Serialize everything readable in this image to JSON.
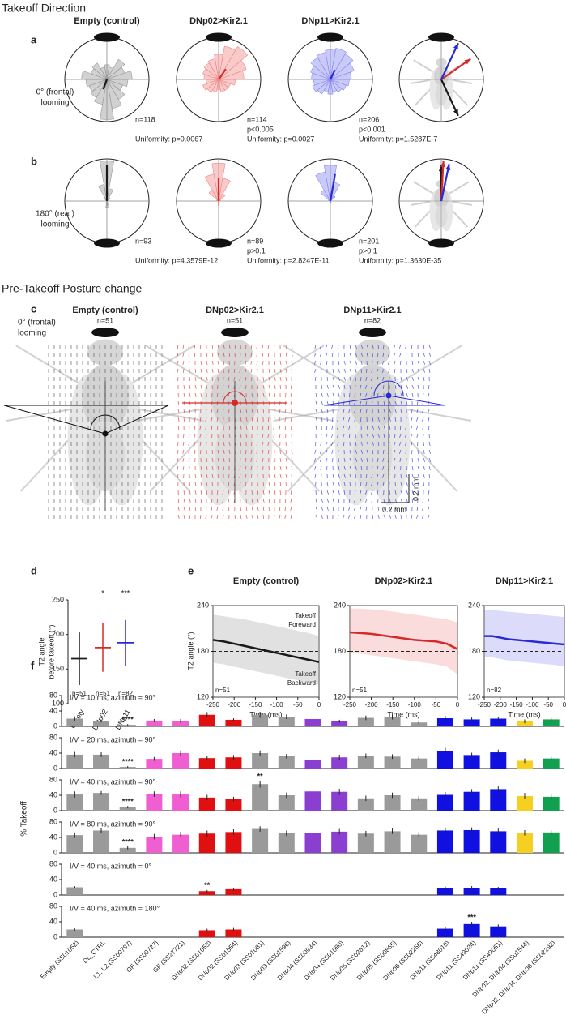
{
  "takeoff_direction": {
    "title": "Takeoff Direction",
    "rlim": [
      0,
      1
    ],
    "genotypes": [
      {
        "name": "Empty (control)",
        "title_color": "#8c8c8c",
        "fill": "#9a9a9a",
        "line": "#1a1a1a"
      },
      {
        "name": "DNp02>Kir2.1",
        "title_color": "#d42a2a",
        "fill": "#f08a8a",
        "line": "#d42a2a"
      },
      {
        "name": "DNp11>Kir2.1",
        "title_color": "#2a2ad4",
        "fill": "#8a8af0",
        "line": "#2a2ad4"
      }
    ],
    "rows": [
      {
        "label": "a",
        "stimulus": [
          "0° (frontal)",
          "looming"
        ],
        "stimulus_side": "front",
        "plots": [
          {
            "rose": [
              0.35,
              0.3,
              0.55,
              0.45,
              0.6,
              0.5,
              0.4,
              0.55,
              0.7,
              0.95,
              0.6,
              0.5,
              0.45,
              0.5,
              0.6,
              0.4,
              0.45,
              0.3
            ],
            "mean_angle": 200,
            "mean_length": 0.25,
            "stats": [
              "n=118",
              "Uniformity: p=0.0067"
            ]
          },
          {
            "rose": [
              0.6,
              0.8,
              0.9,
              0.7,
              0.6,
              0.4,
              0.3,
              0.3,
              0.3,
              0.25,
              0.3,
              0.35,
              0.4,
              0.3,
              0.35,
              0.4,
              0.45,
              0.5
            ],
            "mean_angle": 35,
            "mean_length": 0.3,
            "stats": [
              "n=114",
              "p<0.005",
              "Uniformity: p=0.0027"
            ]
          },
          {
            "rose": [
              0.7,
              0.75,
              0.7,
              0.6,
              0.5,
              0.45,
              0.4,
              0.35,
              0.3,
              0.35,
              0.3,
              0.4,
              0.45,
              0.4,
              0.45,
              0.5,
              0.6,
              0.65
            ],
            "mean_angle": 25,
            "mean_length": 0.25,
            "stats": [
              "n=206",
              "p<0.001",
              "Uniformity: p=1.5287E-7"
            ]
          }
        ],
        "summary": [
          {
            "angle": 155,
            "length": 0.95
          },
          {
            "angle": 55,
            "length": 0.85
          },
          {
            "angle": 25,
            "length": 0.95
          }
        ]
      },
      {
        "label": "b",
        "stimulus": [
          "180° (rear)",
          "looming"
        ],
        "stimulus_side": "rear",
        "plots": [
          {
            "rose": [
              0.95,
              0.3,
              0.1,
              0,
              0,
              0,
              0,
              0,
              0.1,
              0.15,
              0.05,
              0,
              0,
              0,
              0,
              0,
              0.1,
              0.4
            ],
            "mean_angle": 0,
            "mean_length": 0.85,
            "stats": [
              "n=93",
              "Uniformity: p=4.3579E-12"
            ]
          },
          {
            "rose": [
              0.9,
              0.55,
              0.2,
              0.05,
              0,
              0,
              0,
              0,
              0.05,
              0.1,
              0.05,
              0,
              0,
              0,
              0,
              0.05,
              0.3,
              0.65
            ],
            "mean_angle": 0,
            "mean_length": 0.55,
            "stats": [
              "n=89",
              "p>0.1",
              "Uniformity: p=2.8247E-11"
            ]
          },
          {
            "rose": [
              0.85,
              0.45,
              0.15,
              0,
              0,
              0,
              0,
              0,
              0.05,
              0.05,
              0,
              0,
              0,
              0,
              0,
              0.05,
              0.3,
              0.7
            ],
            "mean_angle": 10,
            "mean_length": 0.65,
            "stats": [
              "n=201",
              "p>0.1",
              "Uniformity: p=1.3630E-35"
            ]
          }
        ],
        "summary": [
          {
            "angle": 0,
            "length": 0.85
          },
          {
            "angle": 3,
            "length": 0.95
          },
          {
            "angle": 12,
            "length": 0.9
          }
        ]
      }
    ]
  },
  "posture": {
    "title": "Pre-Takeoff Posture change",
    "c": {
      "label": "c",
      "stimulus": [
        "0° (frontal)",
        "looming"
      ],
      "n_labels": [
        "n=51",
        "n=51",
        "n=82"
      ],
      "scale_y": "0.2 mm",
      "scale_x": "0.2 mm"
    },
    "d": {
      "label": "d",
      "ylabel": [
        "T2 angle",
        "before takeoff (°)"
      ],
      "categories": [
        "Empty",
        "DNp02",
        "DNp11"
      ],
      "means": [
        165,
        181,
        188
      ],
      "sd": [
        38,
        35,
        33
      ],
      "n_labels": [
        "n=51",
        "n=51",
        "n=82"
      ],
      "significance": [
        null,
        "*",
        "***"
      ],
      "ylim": [
        100,
        250
      ],
      "yticks": [
        100,
        150,
        200,
        250
      ]
    },
    "e": {
      "label": "e",
      "ylabel": "T2 angle (°)",
      "xlabel": "Time (ms)",
      "x": [
        -250,
        -225,
        -200,
        -175,
        -150,
        -125,
        -100,
        -75,
        -50,
        -25,
        0
      ],
      "xlim": [
        -250,
        0
      ],
      "xticks": [
        -250,
        -200,
        -150,
        -100,
        -50,
        0
      ],
      "ylim": [
        120,
        240
      ],
      "yticks": [
        120,
        180,
        240
      ],
      "reference_line": 180,
      "annotation_top": [
        "Takeoff",
        "Foreward"
      ],
      "annotation_bottom": [
        "Takeoff",
        "Backward"
      ],
      "series": [
        {
          "values": [
            195,
            193,
            190,
            187,
            184,
            181,
            178,
            175,
            172,
            169,
            166
          ],
          "lower": [
            165,
            163,
            160,
            157,
            154,
            151,
            148,
            145,
            142,
            139,
            136
          ],
          "upper": [
            228,
            226,
            224,
            222,
            219,
            216,
            213,
            210,
            207,
            204,
            200
          ],
          "n": "n=51"
        },
        {
          "values": [
            205,
            204,
            203,
            201,
            199,
            197,
            195,
            194,
            193,
            190,
            183
          ],
          "lower": [
            178,
            177,
            175,
            173,
            171,
            169,
            167,
            165,
            163,
            160,
            150
          ],
          "upper": [
            236,
            236,
            235,
            234,
            232,
            230,
            228,
            226,
            224,
            222,
            218
          ],
          "n": "n=51"
        },
        {
          "values": [
            200,
            200,
            198,
            196,
            195,
            194,
            193,
            192,
            191,
            190,
            189
          ],
          "lower": [
            172,
            172,
            170,
            168,
            167,
            166,
            165,
            164,
            163,
            162,
            160
          ],
          "upper": [
            234,
            234,
            233,
            232,
            231,
            230,
            229,
            228,
            227,
            226,
            225
          ],
          "n": "n=82"
        }
      ]
    }
  },
  "f": {
    "label": "f",
    "ylabel": "% Takeoff",
    "ylim": [
      0,
      80
    ],
    "yticks": [
      0,
      40,
      80
    ],
    "categories": [
      "Empty (SS01062)",
      "DL_CTRL",
      "L1, L2 (SS00797)",
      "GF (SS00727)",
      "GF (SS27721)",
      "DNp02 (SS01053)",
      "DNp02 (SS01554)",
      "DNp03 (SS01081)",
      "DNp03 (SS01596)",
      "DNp04 (SS00934)",
      "DNp04 (SS01080)",
      "DNp05 (SS02612)",
      "DNp05 (SS00865)",
      "DNp06 (SS02256)",
      "DNp11 (SS48010)",
      "DNp11 (SS49024)",
      "DNp11 (SS49051)",
      "DNp02, DNp04 (SS01544)",
      "DNp02, DNp04, DNp06 (SS02292)"
    ],
    "colors": [
      "#9a9a9a",
      "#9a9a9a",
      "#9a9a9a",
      "#f05fd2",
      "#f05fd2",
      "#e01010",
      "#e01010",
      "#9a9a9a",
      "#9a9a9a",
      "#8a3fd0",
      "#8a3fd0",
      "#9a9a9a",
      "#9a9a9a",
      "#9a9a9a",
      "#1010e0",
      "#1010e0",
      "#1010e0",
      "#f5d020",
      "#10a050"
    ],
    "rows": [
      {
        "title": "I/V = 10 ms, azimuth = 90°",
        "values": [
          20,
          14,
          4,
          15,
          14,
          30,
          17,
          30,
          25,
          19,
          13,
          22,
          24,
          10,
          21,
          18,
          20,
          13,
          18
        ],
        "errors": [
          6,
          4,
          2,
          4,
          5,
          7,
          4,
          8,
          6,
          5,
          4,
          6,
          6,
          4,
          6,
          5,
          5,
          5,
          4
        ],
        "significance": [
          null,
          null,
          "****",
          null,
          null,
          null,
          null,
          null,
          null,
          null,
          null,
          null,
          null,
          null,
          null,
          null,
          null,
          null,
          null
        ]
      },
      {
        "title": "I/V = 20 ms, azimuth = 90°",
        "values": [
          36,
          36,
          4,
          25,
          40,
          27,
          29,
          40,
          32,
          22,
          29,
          33,
          31,
          26,
          46,
          35,
          42,
          20,
          26
        ],
        "errors": [
          7,
          6,
          2,
          5,
          7,
          6,
          6,
          7,
          6,
          5,
          7,
          6,
          6,
          5,
          8,
          6,
          7,
          6,
          5
        ],
        "significance": [
          null,
          null,
          "****",
          null,
          null,
          null,
          null,
          null,
          null,
          null,
          null,
          null,
          null,
          null,
          null,
          null,
          null,
          null,
          null
        ]
      },
      {
        "title": "I/V = 40 ms, azimuth = 90°",
        "values": [
          42,
          46,
          9,
          43,
          42,
          34,
          30,
          69,
          40,
          50,
          49,
          32,
          40,
          32,
          41,
          49,
          56,
          38,
          36
        ],
        "errors": [
          8,
          5,
          3,
          7,
          8,
          7,
          6,
          9,
          7,
          7,
          8,
          7,
          7,
          6,
          7,
          7,
          7,
          8,
          6
        ],
        "significance": [
          null,
          null,
          "****",
          null,
          null,
          null,
          null,
          "**",
          null,
          null,
          null,
          null,
          null,
          null,
          null,
          null,
          null,
          null,
          null
        ]
      },
      {
        "title": "I/V = 80 ms, azimuth = 90°",
        "values": [
          46,
          58,
          13,
          42,
          47,
          50,
          54,
          62,
          51,
          51,
          55,
          50,
          56,
          47,
          58,
          59,
          56,
          52,
          53
        ],
        "errors": [
          7,
          6,
          4,
          7,
          7,
          8,
          7,
          7,
          7,
          7,
          7,
          7,
          7,
          6,
          7,
          7,
          7,
          7,
          6
        ],
        "significance": [
          null,
          null,
          "****",
          null,
          null,
          null,
          null,
          null,
          null,
          null,
          null,
          null,
          null,
          null,
          null,
          null,
          null,
          null,
          null
        ]
      },
      {
        "title": "I/V = 40 ms, azimuth = 0°",
        "values": [
          20,
          null,
          null,
          null,
          null,
          10,
          15,
          null,
          null,
          null,
          null,
          null,
          null,
          null,
          17,
          18,
          17,
          null,
          null
        ],
        "errors": [
          3,
          null,
          null,
          null,
          null,
          3,
          4,
          null,
          null,
          null,
          null,
          null,
          null,
          null,
          5,
          5,
          4,
          null,
          null
        ],
        "significance": [
          null,
          null,
          null,
          null,
          null,
          "**",
          null,
          null,
          null,
          null,
          null,
          null,
          null,
          null,
          null,
          null,
          null,
          null,
          null
        ]
      },
      {
        "title": "I/V = 40 ms, azimuth = 180°",
        "values": [
          20,
          null,
          null,
          null,
          null,
          18,
          20,
          null,
          null,
          null,
          null,
          null,
          null,
          null,
          22,
          34,
          28,
          null,
          null
        ],
        "errors": [
          3,
          null,
          null,
          null,
          null,
          4,
          4,
          null,
          null,
          null,
          null,
          null,
          null,
          null,
          5,
          6,
          5,
          null,
          null
        ],
        "significance": [
          null,
          null,
          null,
          null,
          null,
          null,
          null,
          null,
          null,
          null,
          null,
          null,
          null,
          null,
          null,
          "***",
          null,
          null,
          null
        ]
      }
    ]
  }
}
